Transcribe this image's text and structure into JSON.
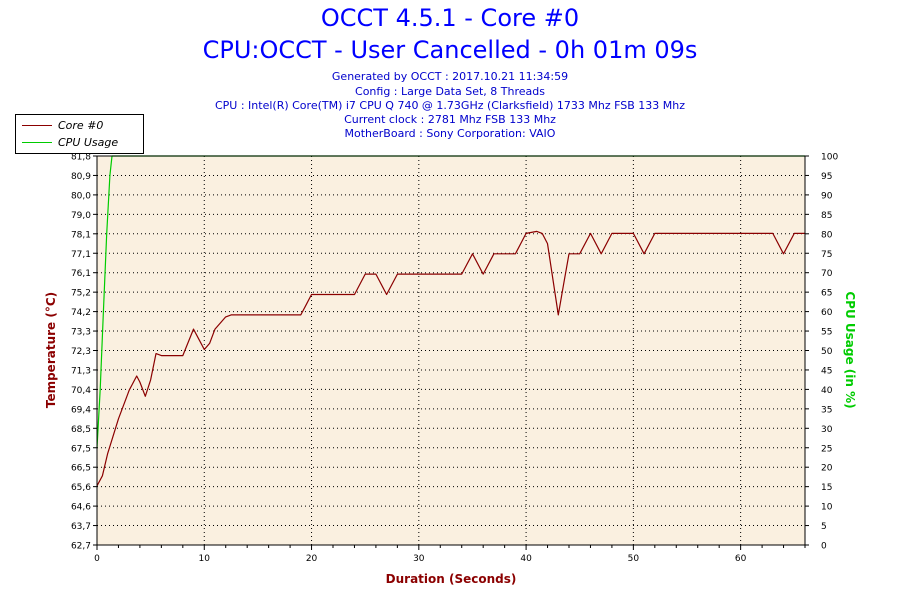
{
  "header": {
    "title": "OCCT 4.5.1 - Core #0",
    "subtitle": "CPU:OCCT - User Cancelled - 0h 01m 09s",
    "generated": "Generated by OCCT : 2017.10.21 11:34:59",
    "config": "Config : Large Data Set, 8 Threads",
    "cpu": "CPU : Intel(R) Core(TM) i7 CPU Q 740 @ 1.73GHz (Clarksfield) 1733 Mhz FSB 133 Mhz",
    "clock": "Current clock : 2781 Mhz FSB 133 Mhz",
    "motherboard": "MotherBoard : Sony Corporation: VAIO"
  },
  "legend": {
    "entries": [
      {
        "label": "Core #0",
        "color": "#8b0000"
      },
      {
        "label": "CPU Usage",
        "color": "#00cc00"
      }
    ]
  },
  "chart_data": {
    "type": "line",
    "xlabel": "Duration (Seconds)",
    "ylabel": "Temperature (°C)",
    "y2label": "CPU Usage (in %)",
    "xlim": [
      0,
      66
    ],
    "ylim": [
      62.7,
      81.8
    ],
    "y2lim": [
      0,
      100
    ],
    "x_ticks": [
      "0",
      "10",
      "20",
      "30",
      "40",
      "50",
      "60"
    ],
    "y_ticks": [
      "62,7",
      "63,7",
      "64,6",
      "65,6",
      "66,5",
      "67,5",
      "68,5",
      "69,4",
      "70,4",
      "71,3",
      "72,3",
      "73,3",
      "74,2",
      "75,2",
      "76,1",
      "77,1",
      "78,1",
      "79,0",
      "80,0",
      "80,9",
      "81,8"
    ],
    "y2_ticks": [
      "0",
      "5",
      "10",
      "15",
      "20",
      "25",
      "30",
      "35",
      "40",
      "45",
      "50",
      "55",
      "60",
      "65",
      "70",
      "75",
      "80",
      "85",
      "90",
      "95",
      "100"
    ],
    "grid": true,
    "legend_position": "top-left",
    "series": [
      {
        "name": "Core #0",
        "color": "#8b0000",
        "axis": "left",
        "points": [
          [
            0,
            65.6
          ],
          [
            0.5,
            66.1
          ],
          [
            1,
            67.2
          ],
          [
            2,
            68.9
          ],
          [
            3,
            70.3
          ],
          [
            3.3,
            70.6
          ],
          [
            3.7,
            71.0
          ],
          [
            4,
            70.7
          ],
          [
            4.5,
            70.0
          ],
          [
            5,
            70.8
          ],
          [
            5.5,
            72.1
          ],
          [
            6,
            72.0
          ],
          [
            8,
            72.0
          ],
          [
            9,
            73.3
          ],
          [
            9.5,
            72.8
          ],
          [
            10,
            72.3
          ],
          [
            10.5,
            72.6
          ],
          [
            11,
            73.3
          ],
          [
            12,
            73.9
          ],
          [
            12.5,
            74.0
          ],
          [
            19,
            74.0
          ],
          [
            19.5,
            74.5
          ],
          [
            20,
            75.0
          ],
          [
            24,
            75.0
          ],
          [
            25,
            76.0
          ],
          [
            26,
            76.0
          ],
          [
            27,
            75.0
          ],
          [
            28,
            76.0
          ],
          [
            34,
            76.0
          ],
          [
            35,
            77.0
          ],
          [
            36,
            76.0
          ],
          [
            37,
            77.0
          ],
          [
            39,
            77.0
          ],
          [
            40,
            78.0
          ],
          [
            41,
            78.1
          ],
          [
            41.5,
            78.0
          ],
          [
            42,
            77.5
          ],
          [
            43,
            74.0
          ],
          [
            43.5,
            75.5
          ],
          [
            44,
            77.0
          ],
          [
            45,
            77.0
          ],
          [
            46,
            78.0
          ],
          [
            47,
            77.0
          ],
          [
            48,
            78.0
          ],
          [
            50,
            78.0
          ],
          [
            51,
            77.0
          ],
          [
            52,
            78.0
          ],
          [
            63,
            78.0
          ],
          [
            64,
            77.0
          ],
          [
            65,
            78.0
          ],
          [
            66,
            78.0
          ]
        ]
      },
      {
        "name": "CPU Usage",
        "color": "#00cc00",
        "axis": "right",
        "points": [
          [
            0,
            25
          ],
          [
            0.3,
            40
          ],
          [
            0.6,
            60
          ],
          [
            0.9,
            80
          ],
          [
            1.2,
            95
          ],
          [
            1.4,
            100
          ],
          [
            66,
            100
          ]
        ]
      }
    ]
  }
}
